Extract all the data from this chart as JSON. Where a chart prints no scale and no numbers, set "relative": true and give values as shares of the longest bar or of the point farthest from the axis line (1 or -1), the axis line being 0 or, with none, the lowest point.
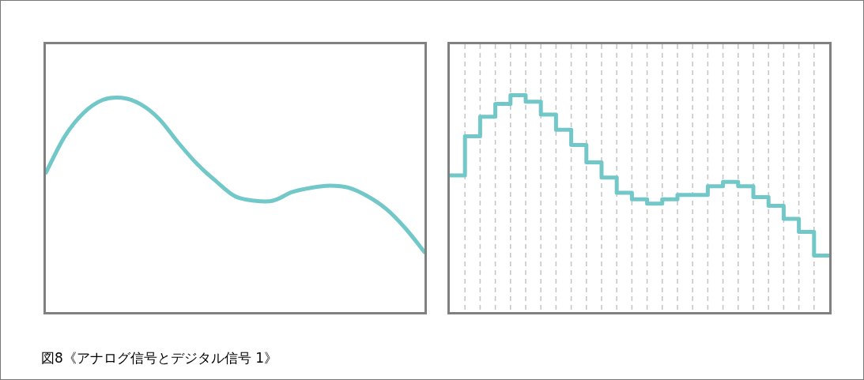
{
  "chart_data": [
    {
      "type": "line",
      "relative": true,
      "color": "#72c8c8",
      "categories": [
        null,
        null,
        null,
        null,
        null,
        null,
        null,
        null,
        null,
        null,
        null,
        null,
        null,
        null,
        null,
        null,
        null,
        null,
        null,
        null,
        null
      ],
      "values": [
        0.65,
        0.82,
        0.93,
        0.99,
        1,
        0.97,
        0.9,
        0.79,
        0.69,
        0.61,
        0.54,
        0.52,
        0.52,
        0.56,
        0.58,
        0.59,
        0.58,
        0.54,
        0.48,
        0.39,
        0.28
      ],
      "annotations": [
        "図8《アナログ信号とデジタル信号 1》"
      ]
    },
    {
      "type": "step",
      "relative": true,
      "color": "#72c8c8",
      "grid": "x",
      "categories": [
        null,
        null,
        null,
        null,
        null,
        null,
        null,
        null,
        null,
        null,
        null,
        null,
        null,
        null,
        null,
        null,
        null,
        null,
        null,
        null,
        null,
        null,
        null,
        null,
        null,
        null
      ],
      "values": [
        0.63,
        0.81,
        0.9,
        0.96,
        1,
        0.97,
        0.91,
        0.84,
        0.77,
        0.69,
        0.62,
        0.55,
        0.52,
        0.5,
        0.52,
        0.54,
        0.54,
        0.58,
        0.6,
        0.58,
        0.53,
        0.49,
        0.43,
        0.37,
        0.26,
        0.26
      ]
    }
  ]
}
